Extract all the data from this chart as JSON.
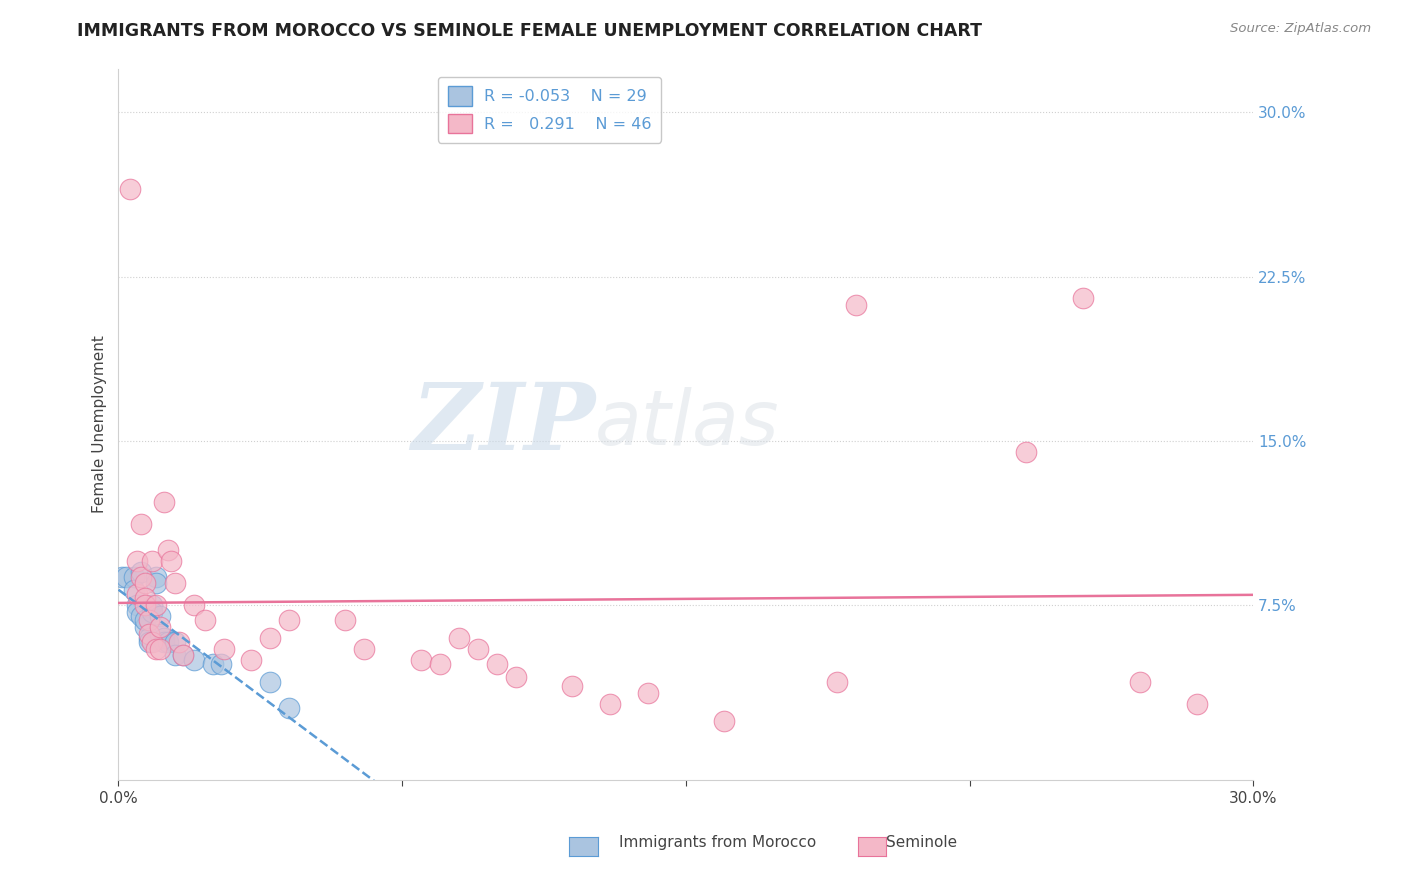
{
  "title": "IMMIGRANTS FROM MOROCCO VS SEMINOLE FEMALE UNEMPLOYMENT CORRELATION CHART",
  "source": "Source: ZipAtlas.com",
  "ylabel": "Female Unemployment",
  "xmin": 0.0,
  "xmax": 0.3,
  "ymin": -0.005,
  "ymax": 0.32,
  "ytick_right_labels": [
    "30.0%",
    "22.5%",
    "15.0%",
    "7.5%"
  ],
  "ytick_right_values": [
    0.3,
    0.225,
    0.15,
    0.075
  ],
  "color_blue": "#aac4e0",
  "color_pink": "#f4b8c8",
  "color_blue_line": "#5b9bd5",
  "color_pink_line": "#e8739a",
  "watermark_zip": "ZIP",
  "watermark_atlas": "atlas",
  "grid_color": "#d0d0d0",
  "background_color": "#ffffff",
  "title_color": "#222222",
  "axis_color": "#444444",
  "right_axis_color": "#5b9bd5",
  "blue_points": [
    [
      0.001,
      0.088
    ],
    [
      0.002,
      0.088
    ],
    [
      0.004,
      0.088
    ],
    [
      0.004,
      0.082
    ],
    [
      0.005,
      0.075
    ],
    [
      0.005,
      0.072
    ],
    [
      0.006,
      0.09
    ],
    [
      0.006,
      0.07
    ],
    [
      0.007,
      0.065
    ],
    [
      0.007,
      0.068
    ],
    [
      0.008,
      0.06
    ],
    [
      0.008,
      0.058
    ],
    [
      0.009,
      0.075
    ],
    [
      0.009,
      0.072
    ],
    [
      0.01,
      0.088
    ],
    [
      0.01,
      0.085
    ],
    [
      0.011,
      0.07
    ],
    [
      0.011,
      0.062
    ],
    [
      0.012,
      0.06
    ],
    [
      0.012,
      0.058
    ],
    [
      0.013,
      0.058
    ],
    [
      0.015,
      0.058
    ],
    [
      0.015,
      0.052
    ],
    [
      0.017,
      0.052
    ],
    [
      0.02,
      0.05
    ],
    [
      0.025,
      0.048
    ],
    [
      0.027,
      0.048
    ],
    [
      0.04,
      0.04
    ],
    [
      0.045,
      0.028
    ]
  ],
  "pink_points": [
    [
      0.003,
      0.265
    ],
    [
      0.006,
      0.112
    ],
    [
      0.005,
      0.095
    ],
    [
      0.005,
      0.08
    ],
    [
      0.006,
      0.088
    ],
    [
      0.007,
      0.085
    ],
    [
      0.007,
      0.078
    ],
    [
      0.007,
      0.075
    ],
    [
      0.008,
      0.068
    ],
    [
      0.008,
      0.062
    ],
    [
      0.009,
      0.095
    ],
    [
      0.009,
      0.058
    ],
    [
      0.01,
      0.075
    ],
    [
      0.01,
      0.055
    ],
    [
      0.011,
      0.065
    ],
    [
      0.011,
      0.055
    ],
    [
      0.012,
      0.122
    ],
    [
      0.013,
      0.1
    ],
    [
      0.014,
      0.095
    ],
    [
      0.015,
      0.085
    ],
    [
      0.016,
      0.058
    ],
    [
      0.017,
      0.052
    ],
    [
      0.02,
      0.075
    ],
    [
      0.023,
      0.068
    ],
    [
      0.028,
      0.055
    ],
    [
      0.035,
      0.05
    ],
    [
      0.04,
      0.06
    ],
    [
      0.045,
      0.068
    ],
    [
      0.06,
      0.068
    ],
    [
      0.065,
      0.055
    ],
    [
      0.08,
      0.05
    ],
    [
      0.085,
      0.048
    ],
    [
      0.09,
      0.06
    ],
    [
      0.095,
      0.055
    ],
    [
      0.1,
      0.048
    ],
    [
      0.105,
      0.042
    ],
    [
      0.12,
      0.038
    ],
    [
      0.13,
      0.03
    ],
    [
      0.14,
      0.035
    ],
    [
      0.16,
      0.022
    ],
    [
      0.19,
      0.04
    ],
    [
      0.195,
      0.212
    ],
    [
      0.24,
      0.145
    ],
    [
      0.255,
      0.215
    ],
    [
      0.27,
      0.04
    ],
    [
      0.285,
      0.03
    ]
  ]
}
